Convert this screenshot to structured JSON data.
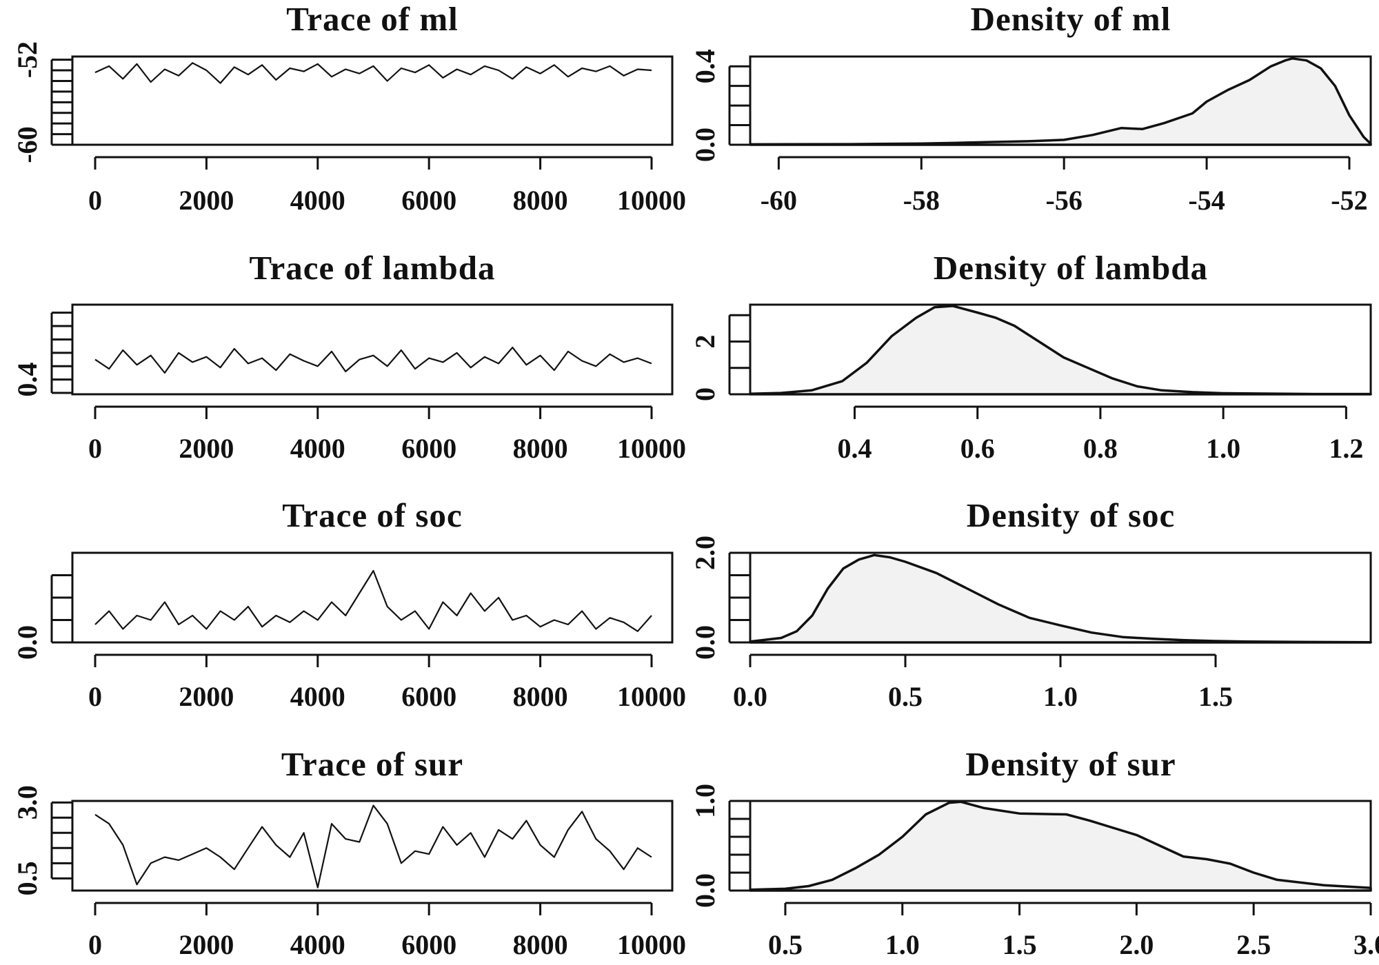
{
  "chart_data": [
    {
      "type": "line",
      "title": "Trace of ml",
      "xlim": [
        0,
        10000
      ],
      "ylim": [
        -60,
        -51.7
      ],
      "xticks": [
        0,
        2000,
        4000,
        6000,
        8000,
        10000
      ],
      "xtick_labels": [
        "0",
        "2000",
        "4000",
        "6000",
        "8000",
        "10000"
      ],
      "yticks": [
        -60,
        -59,
        -58,
        -57,
        -56,
        -55,
        -54,
        -53,
        -52
      ],
      "ytick_labels": [
        {
          "value": -60,
          "label": "-60"
        },
        {
          "value": -52,
          "label": "-52"
        }
      ],
      "series": [
        {
          "x": [
            0,
            250,
            500,
            750,
            1000,
            1250,
            1500,
            1750,
            2000,
            2250,
            2500,
            2750,
            3000,
            3250,
            3500,
            3750,
            4000,
            4250,
            4500,
            4750,
            5000,
            5250,
            5500,
            5750,
            6000,
            6250,
            6500,
            6750,
            7000,
            7250,
            7500,
            7750,
            8000,
            8250,
            8500,
            8750,
            9000,
            9250,
            9500,
            9750,
            10000
          ],
          "y": [
            -53.2,
            -52.6,
            -53.8,
            -52.4,
            -54.1,
            -52.9,
            -53.5,
            -52.3,
            -53.0,
            -54.2,
            -52.7,
            -53.4,
            -52.5,
            -53.9,
            -52.8,
            -53.1,
            -52.4,
            -53.6,
            -52.9,
            -53.3,
            -52.6,
            -54.0,
            -52.8,
            -53.2,
            -52.5,
            -53.7,
            -52.9,
            -53.4,
            -52.6,
            -53.0,
            -53.8,
            -52.7,
            -53.3,
            -52.5,
            -53.6,
            -52.8,
            -53.1,
            -52.6,
            -53.5,
            -52.9,
            -53.0
          ]
        }
      ]
    },
    {
      "type": "area",
      "title": "Density of ml",
      "xlim": [
        -60.4,
        -51.7
      ],
      "ylim": [
        0,
        0.45
      ],
      "xticks": [
        -60,
        -58,
        -56,
        -54,
        -52
      ],
      "xtick_labels": [
        "-60",
        "-58",
        "-56",
        "-54",
        "-52"
      ],
      "yticks": [
        0.0,
        0.1,
        0.2,
        0.3,
        0.4
      ],
      "ytick_labels": [
        {
          "value": 0.0,
          "label": "0.0"
        },
        {
          "value": 0.4,
          "label": "0.4"
        }
      ],
      "series": [
        {
          "x": [
            -60.4,
            -59,
            -58,
            -57.5,
            -57,
            -56.5,
            -56,
            -55.6,
            -55.2,
            -54.9,
            -54.6,
            -54.2,
            -54.0,
            -53.7,
            -53.4,
            -53.1,
            -52.9,
            -52.8,
            -52.6,
            -52.4,
            -52.2,
            -52.0,
            -51.8,
            -51.7
          ],
          "y": [
            0.002,
            0.003,
            0.006,
            0.01,
            0.014,
            0.018,
            0.025,
            0.05,
            0.085,
            0.08,
            0.11,
            0.16,
            0.22,
            0.28,
            0.33,
            0.4,
            0.43,
            0.44,
            0.43,
            0.39,
            0.3,
            0.15,
            0.04,
            0.005
          ]
        }
      ]
    },
    {
      "type": "line",
      "title": "Trace of lambda",
      "xlim": [
        0,
        10000
      ],
      "ylim": [
        0.29,
        0.96
      ],
      "xticks": [
        0,
        2000,
        4000,
        6000,
        8000,
        10000
      ],
      "xtick_labels": [
        "0",
        "2000",
        "4000",
        "6000",
        "8000",
        "10000"
      ],
      "yticks": [
        0.3,
        0.4,
        0.5,
        0.6,
        0.7,
        0.8,
        0.9
      ],
      "ytick_labels": [
        {
          "value": 0.4,
          "label": "0.4"
        }
      ],
      "series": [
        {
          "x": [
            0,
            250,
            500,
            750,
            1000,
            1250,
            1500,
            1750,
            2000,
            2250,
            2500,
            2750,
            3000,
            3250,
            3500,
            3750,
            4000,
            4250,
            4500,
            4750,
            5000,
            5250,
            5500,
            5750,
            6000,
            6250,
            6500,
            6750,
            7000,
            7250,
            7500,
            7750,
            8000,
            8250,
            8500,
            8750,
            9000,
            9250,
            9500,
            9750,
            10000
          ],
          "y": [
            0.55,
            0.48,
            0.62,
            0.51,
            0.58,
            0.45,
            0.6,
            0.53,
            0.57,
            0.49,
            0.63,
            0.52,
            0.56,
            0.47,
            0.59,
            0.54,
            0.5,
            0.61,
            0.46,
            0.55,
            0.58,
            0.5,
            0.62,
            0.48,
            0.56,
            0.53,
            0.6,
            0.49,
            0.57,
            0.52,
            0.64,
            0.51,
            0.58,
            0.47,
            0.61,
            0.54,
            0.5,
            0.59,
            0.53,
            0.56,
            0.52
          ]
        }
      ]
    },
    {
      "type": "area",
      "title": "Density of lambda",
      "xlim": [
        0.23,
        1.24
      ],
      "ylim": [
        0,
        3.4
      ],
      "xticks": [
        0.4,
        0.6,
        0.8,
        1.0,
        1.2
      ],
      "xtick_labels": [
        "0.4",
        "0.6",
        "0.8",
        "1.0",
        "1.2"
      ],
      "yticks": [
        0,
        1,
        2,
        3
      ],
      "ytick_labels": [
        {
          "value": 0,
          "label": "0"
        },
        {
          "value": 2,
          "label": "2"
        }
      ],
      "series": [
        {
          "x": [
            0.23,
            0.28,
            0.33,
            0.38,
            0.42,
            0.46,
            0.5,
            0.53,
            0.56,
            0.6,
            0.63,
            0.66,
            0.7,
            0.74,
            0.78,
            0.82,
            0.86,
            0.9,
            0.95,
            1.0,
            1.05,
            1.1,
            1.15,
            1.24
          ],
          "y": [
            0.02,
            0.05,
            0.15,
            0.5,
            1.2,
            2.2,
            2.9,
            3.3,
            3.35,
            3.1,
            2.9,
            2.6,
            2.0,
            1.4,
            1.0,
            0.6,
            0.3,
            0.15,
            0.08,
            0.04,
            0.03,
            0.02,
            0.01,
            0.01
          ]
        }
      ]
    },
    {
      "type": "line",
      "title": "Trace of soc",
      "xlim": [
        0,
        10000
      ],
      "ylim": [
        0,
        2.0
      ],
      "xticks": [
        0,
        2000,
        4000,
        6000,
        8000,
        10000
      ],
      "xtick_labels": [
        "0",
        "2000",
        "4000",
        "6000",
        "8000",
        "10000"
      ],
      "yticks": [
        0.0,
        0.5,
        1.0,
        1.5
      ],
      "ytick_labels": [
        {
          "value": 0.0,
          "label": "0.0"
        }
      ],
      "series": [
        {
          "x": [
            0,
            250,
            500,
            750,
            1000,
            1250,
            1500,
            1750,
            2000,
            2250,
            2500,
            2750,
            3000,
            3250,
            3500,
            3750,
            4000,
            4250,
            4500,
            4750,
            5000,
            5250,
            5500,
            5750,
            6000,
            6250,
            6500,
            6750,
            7000,
            7250,
            7500,
            7750,
            8000,
            8250,
            8500,
            8750,
            9000,
            9250,
            9500,
            9750,
            10000
          ],
          "y": [
            0.4,
            0.7,
            0.3,
            0.6,
            0.5,
            0.9,
            0.4,
            0.6,
            0.3,
            0.7,
            0.5,
            0.8,
            0.35,
            0.6,
            0.45,
            0.7,
            0.5,
            0.9,
            0.6,
            1.1,
            1.6,
            0.8,
            0.5,
            0.7,
            0.3,
            0.9,
            0.6,
            1.1,
            0.7,
            1.0,
            0.5,
            0.6,
            0.35,
            0.5,
            0.4,
            0.7,
            0.3,
            0.55,
            0.45,
            0.25,
            0.6
          ]
        }
      ]
    },
    {
      "type": "area",
      "title": "Density of soc",
      "xlim": [
        0,
        2.0
      ],
      "ylim": [
        0,
        2.0
      ],
      "xticks": [
        0.0,
        0.5,
        1.0,
        1.5
      ],
      "xtick_labels": [
        "0.0",
        "0.5",
        "1.0",
        "1.5"
      ],
      "yticks": [
        0.0,
        0.5,
        1.0,
        1.5,
        2.0
      ],
      "ytick_labels": [
        {
          "value": 0.0,
          "label": "0.0"
        },
        {
          "value": 2.0,
          "label": "2.0"
        }
      ],
      "series": [
        {
          "x": [
            0,
            0.1,
            0.15,
            0.2,
            0.25,
            0.3,
            0.35,
            0.4,
            0.45,
            0.5,
            0.6,
            0.7,
            0.8,
            0.9,
            1.0,
            1.1,
            1.2,
            1.3,
            1.4,
            1.5,
            1.6,
            1.8,
            2.0
          ],
          "y": [
            0.02,
            0.1,
            0.25,
            0.6,
            1.2,
            1.65,
            1.85,
            1.95,
            1.9,
            1.8,
            1.55,
            1.2,
            0.85,
            0.55,
            0.38,
            0.22,
            0.12,
            0.08,
            0.05,
            0.03,
            0.02,
            0.01,
            0.005
          ]
        }
      ]
    },
    {
      "type": "line",
      "title": "Trace of sur",
      "xlim": [
        0,
        10000
      ],
      "ylim": [
        0.1,
        3.05
      ],
      "xticks": [
        0,
        2000,
        4000,
        6000,
        8000,
        10000
      ],
      "xtick_labels": [
        "0",
        "2000",
        "4000",
        "6000",
        "8000",
        "10000"
      ],
      "yticks": [
        0.5,
        1.0,
        1.5,
        2.0,
        2.5,
        3.0
      ],
      "ytick_labels": [
        {
          "value": 0.5,
          "label": "0.5"
        },
        {
          "value": 3.0,
          "label": "3.0"
        }
      ],
      "series": [
        {
          "x": [
            0,
            250,
            500,
            750,
            1000,
            1250,
            1500,
            1750,
            2000,
            2250,
            2500,
            2750,
            3000,
            3250,
            3500,
            3750,
            4000,
            4250,
            4500,
            4750,
            5000,
            5250,
            5500,
            5750,
            6000,
            6250,
            6500,
            6750,
            7000,
            7250,
            7500,
            7750,
            8000,
            8250,
            8500,
            8750,
            9000,
            9250,
            9500,
            9750,
            10000
          ],
          "y": [
            2.6,
            2.3,
            1.6,
            0.3,
            1.0,
            1.2,
            1.1,
            1.3,
            1.5,
            1.2,
            0.8,
            1.5,
            2.2,
            1.6,
            1.2,
            2.0,
            0.2,
            2.3,
            1.8,
            1.7,
            2.9,
            2.3,
            1.0,
            1.4,
            1.3,
            2.2,
            1.6,
            2.0,
            1.2,
            2.1,
            1.8,
            2.4,
            1.6,
            1.2,
            2.1,
            2.7,
            1.8,
            1.4,
            0.8,
            1.5,
            1.2
          ]
        }
      ]
    },
    {
      "type": "area",
      "title": "Density of sur",
      "xlim": [
        0.35,
        3.0
      ],
      "ylim": [
        0,
        1.0
      ],
      "xticks": [
        0.5,
        1.0,
        1.5,
        2.0,
        2.5,
        3.0
      ],
      "xtick_labels": [
        "0.5",
        "1.0",
        "1.5",
        "2.0",
        "2.5",
        "3.0"
      ],
      "yticks": [
        0.0,
        0.2,
        0.4,
        0.6,
        0.8,
        1.0
      ],
      "ytick_labels": [
        {
          "value": 0.0,
          "label": "0.0"
        },
        {
          "value": 1.0,
          "label": "1.0"
        }
      ],
      "series": [
        {
          "x": [
            0.35,
            0.5,
            0.6,
            0.7,
            0.8,
            0.9,
            1.0,
            1.1,
            1.2,
            1.25,
            1.35,
            1.5,
            1.7,
            1.8,
            1.9,
            2.0,
            2.1,
            2.2,
            2.3,
            2.4,
            2.5,
            2.6,
            2.8,
            3.0
          ],
          "y": [
            0.01,
            0.02,
            0.05,
            0.12,
            0.25,
            0.4,
            0.6,
            0.85,
            0.98,
            0.99,
            0.92,
            0.86,
            0.85,
            0.78,
            0.7,
            0.62,
            0.5,
            0.38,
            0.35,
            0.3,
            0.2,
            0.12,
            0.06,
            0.03
          ]
        }
      ]
    }
  ]
}
